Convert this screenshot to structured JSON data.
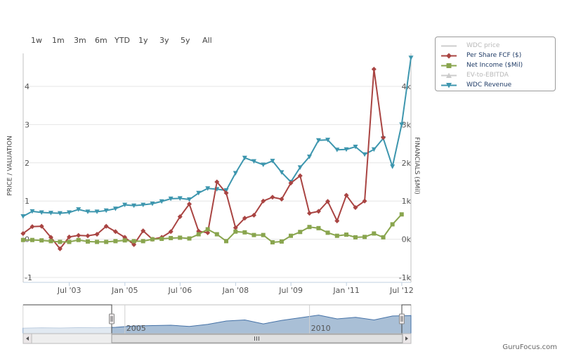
{
  "range_selector": {
    "buttons": [
      "1w",
      "1m",
      "3m",
      "6m",
      "YTD",
      "1y",
      "3y",
      "5y",
      "All"
    ]
  },
  "legend": {
    "items": [
      {
        "label": "WDC price",
        "color": "#b8b8b8",
        "visible": false,
        "symbol": "line"
      },
      {
        "label": "Per Share FCF ($)",
        "color": "#a94442",
        "visible": true,
        "symbol": "diamond"
      },
      {
        "label": "Net Income ($Mil)",
        "color": "#89a54e",
        "visible": true,
        "symbol": "square"
      },
      {
        "label": "EV-to-EBITDA",
        "color": "#b8b8b8",
        "visible": false,
        "symbol": "triangle"
      },
      {
        "label": "WDC Revenue",
        "color": "#3d96ae",
        "visible": true,
        "symbol": "triangle-down"
      }
    ]
  },
  "axes": {
    "left_title": "PRICE / VALUATION",
    "right_title": "FINANCIALS ($Mil)",
    "left_ticks": [
      "-1",
      "0",
      "1",
      "2",
      "3",
      "4"
    ],
    "right_ticks": [
      "-1k",
      "0k",
      "1k",
      "2k",
      "3k",
      "4k"
    ],
    "x_ticks": [
      "Jul '03",
      "Jan '05",
      "Jul '06",
      "Jan '08",
      "Jul '09",
      "Jan '11",
      "Jul '12"
    ]
  },
  "navigator": {
    "labels": [
      "2005",
      "2010"
    ]
  },
  "watermark": "GuruFocus.com",
  "chart_data": {
    "type": "line",
    "x_range": [
      "2002-04-01",
      "2012-09-30"
    ],
    "left_ylim": [
      -1,
      4.8
    ],
    "right_ylim": [
      -1000,
      4800
    ],
    "x_ticks": [
      "2003-07-01",
      "2005-01-01",
      "2006-07-01",
      "2008-01-01",
      "2009-07-01",
      "2011-01-01",
      "2012-07-01"
    ],
    "series": [
      {
        "name": "WDC Revenue",
        "axis": "right",
        "color": "#3d96ae",
        "marker": "triangle-down",
        "points": [
          [
            "2002-03-31",
            600
          ],
          [
            "2002-06-30",
            730
          ],
          [
            "2002-09-30",
            700
          ],
          [
            "2002-12-31",
            690
          ],
          [
            "2003-03-31",
            680
          ],
          [
            "2003-06-30",
            700
          ],
          [
            "2003-09-30",
            780
          ],
          [
            "2003-12-31",
            720
          ],
          [
            "2004-03-31",
            720
          ],
          [
            "2004-06-30",
            750
          ],
          [
            "2004-09-30",
            800
          ],
          [
            "2004-12-31",
            900
          ],
          [
            "2005-03-31",
            880
          ],
          [
            "2005-06-30",
            900
          ],
          [
            "2005-09-30",
            930
          ],
          [
            "2005-12-31",
            990
          ],
          [
            "2006-03-31",
            1060
          ],
          [
            "2006-06-30",
            1070
          ],
          [
            "2006-09-30",
            1040
          ],
          [
            "2006-12-31",
            1210
          ],
          [
            "2007-03-31",
            1330
          ],
          [
            "2007-06-30",
            1310
          ],
          [
            "2007-09-30",
            1280
          ],
          [
            "2007-12-31",
            1730
          ],
          [
            "2008-03-31",
            2130
          ],
          [
            "2008-06-30",
            2040
          ],
          [
            "2008-09-30",
            1950
          ],
          [
            "2008-12-31",
            2050
          ],
          [
            "2009-03-31",
            1750
          ],
          [
            "2009-06-30",
            1500
          ],
          [
            "2009-09-30",
            1880
          ],
          [
            "2009-12-31",
            2160
          ],
          [
            "2010-03-31",
            2590
          ],
          [
            "2010-06-30",
            2600
          ],
          [
            "2010-09-30",
            2340
          ],
          [
            "2010-12-31",
            2350
          ],
          [
            "2011-03-31",
            2420
          ],
          [
            "2011-06-30",
            2220
          ],
          [
            "2011-09-30",
            2350
          ],
          [
            "2011-12-31",
            2640
          ],
          [
            "2012-03-31",
            1900
          ],
          [
            "2012-06-30",
            3000
          ],
          [
            "2012-09-30",
            4750
          ]
        ]
      },
      {
        "name": "Per Share FCF ($)",
        "axis": "left",
        "color": "#a94442",
        "marker": "diamond",
        "points": [
          [
            "2002-03-31",
            0.15
          ],
          [
            "2002-06-30",
            0.33
          ],
          [
            "2002-09-30",
            0.34
          ],
          [
            "2002-12-31",
            0.05
          ],
          [
            "2003-03-31",
            -0.25
          ],
          [
            "2003-06-30",
            0.06
          ],
          [
            "2003-09-30",
            0.1
          ],
          [
            "2003-12-31",
            0.09
          ],
          [
            "2004-03-31",
            0.13
          ],
          [
            "2004-06-30",
            0.34
          ],
          [
            "2004-09-30",
            0.2
          ],
          [
            "2004-12-31",
            0.05
          ],
          [
            "2005-03-31",
            -0.14
          ],
          [
            "2005-06-30",
            0.22
          ],
          [
            "2005-09-30",
            0.0
          ],
          [
            "2005-12-31",
            0.05
          ],
          [
            "2006-03-31",
            0.2
          ],
          [
            "2006-06-30",
            0.59
          ],
          [
            "2006-09-30",
            0.92
          ],
          [
            "2006-12-31",
            0.21
          ],
          [
            "2007-03-31",
            0.17
          ],
          [
            "2007-06-30",
            1.5
          ],
          [
            "2007-09-30",
            1.21
          ],
          [
            "2007-12-31",
            0.3
          ],
          [
            "2008-03-31",
            0.55
          ],
          [
            "2008-06-30",
            0.63
          ],
          [
            "2008-09-30",
            1.0
          ],
          [
            "2008-12-31",
            1.1
          ],
          [
            "2009-03-31",
            1.05
          ],
          [
            "2009-06-30",
            1.47
          ],
          [
            "2009-09-30",
            1.66
          ],
          [
            "2009-12-31",
            0.68
          ],
          [
            "2010-03-31",
            0.73
          ],
          [
            "2010-06-30",
            0.99
          ],
          [
            "2010-09-30",
            0.48
          ],
          [
            "2010-12-31",
            1.15
          ],
          [
            "2011-03-31",
            0.83
          ],
          [
            "2011-06-30",
            1.0
          ],
          [
            "2011-09-30",
            4.45
          ],
          [
            "2011-12-31",
            2.66
          ]
        ]
      },
      {
        "name": "Net Income ($Mil)",
        "axis": "right",
        "color": "#89a54e",
        "marker": "square",
        "points": [
          [
            "2002-03-31",
            -20
          ],
          [
            "2002-06-30",
            -20
          ],
          [
            "2002-09-30",
            -30
          ],
          [
            "2002-12-31",
            -50
          ],
          [
            "2003-03-31",
            -70
          ],
          [
            "2003-06-30",
            -70
          ],
          [
            "2003-09-30",
            -20
          ],
          [
            "2003-12-31",
            -60
          ],
          [
            "2004-03-31",
            -70
          ],
          [
            "2004-06-30",
            -70
          ],
          [
            "2004-09-30",
            -50
          ],
          [
            "2004-12-31",
            -30
          ],
          [
            "2005-03-31",
            -50
          ],
          [
            "2005-06-30",
            -50
          ],
          [
            "2005-09-30",
            0
          ],
          [
            "2005-12-31",
            10
          ],
          [
            "2006-03-31",
            30
          ],
          [
            "2006-06-30",
            40
          ],
          [
            "2006-09-30",
            20
          ],
          [
            "2006-12-31",
            130
          ],
          [
            "2007-03-31",
            260
          ],
          [
            "2007-06-30",
            130
          ],
          [
            "2007-09-30",
            -50
          ],
          [
            "2007-12-31",
            200
          ],
          [
            "2008-03-31",
            180
          ],
          [
            "2008-06-30",
            110
          ],
          [
            "2008-09-30",
            110
          ],
          [
            "2008-12-31",
            -80
          ],
          [
            "2009-03-31",
            -60
          ],
          [
            "2009-06-30",
            90
          ],
          [
            "2009-09-30",
            190
          ],
          [
            "2009-12-31",
            320
          ],
          [
            "2010-03-31",
            290
          ],
          [
            "2010-06-30",
            170
          ],
          [
            "2010-09-30",
            90
          ],
          [
            "2010-12-31",
            120
          ],
          [
            "2011-03-31",
            50
          ],
          [
            "2011-06-30",
            60
          ],
          [
            "2011-09-30",
            150
          ],
          [
            "2011-12-31",
            50
          ],
          [
            "2012-03-31",
            390
          ],
          [
            "2012-06-30",
            650
          ]
        ]
      }
    ],
    "navigator_series": [
      [
        "2002-04-01",
        0.12
      ],
      [
        "2002-10-01",
        0.14
      ],
      [
        "2003-04-01",
        0.13
      ],
      [
        "2003-10-01",
        0.15
      ],
      [
        "2004-04-01",
        0.14
      ],
      [
        "2004-10-01",
        0.16
      ],
      [
        "2005-04-01",
        0.22
      ],
      [
        "2005-10-01",
        0.24
      ],
      [
        "2006-04-01",
        0.26
      ],
      [
        "2006-10-01",
        0.2
      ],
      [
        "2007-04-01",
        0.3
      ],
      [
        "2007-10-01",
        0.45
      ],
      [
        "2008-04-01",
        0.5
      ],
      [
        "2008-10-01",
        0.32
      ],
      [
        "2009-04-01",
        0.48
      ],
      [
        "2009-10-01",
        0.6
      ],
      [
        "2010-04-01",
        0.72
      ],
      [
        "2010-10-01",
        0.55
      ],
      [
        "2011-04-01",
        0.62
      ],
      [
        "2011-10-01",
        0.5
      ],
      [
        "2012-04-01",
        0.68
      ],
      [
        "2012-09-30",
        0.7
      ]
    ]
  }
}
